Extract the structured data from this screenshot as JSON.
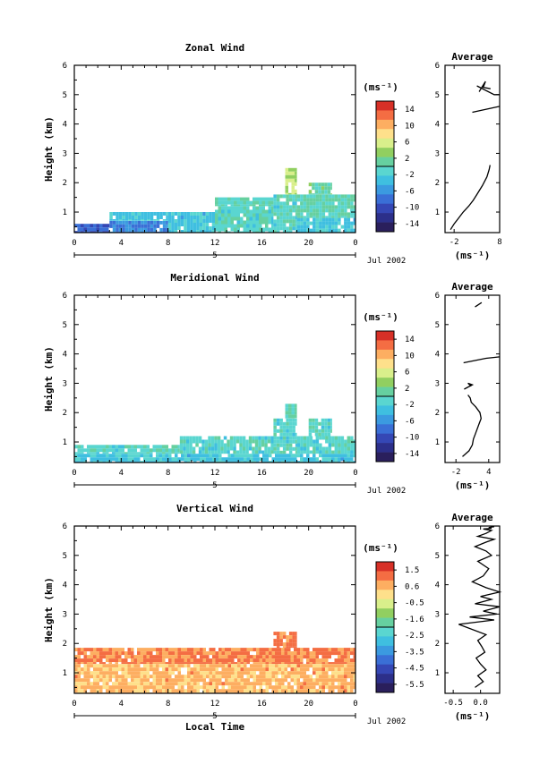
{
  "chart_data": [
    {
      "type": "heatmap",
      "title": "Zonal Wind",
      "ylabel": "Height (km)",
      "xlabel": "",
      "date_label": "Jul 2002",
      "day_label": "5",
      "x_ticks": [
        "0",
        "4",
        "8",
        "12",
        "16",
        "20",
        "0"
      ],
      "y_ticks": [
        "1",
        "2",
        "3",
        "4",
        "5",
        "6"
      ],
      "xlim": [
        0,
        24
      ],
      "ylim": [
        0.3,
        6
      ],
      "colorbar": {
        "unit": "(ms⁻¹)",
        "tick_labels": [
          "14",
          "10",
          "6",
          "2",
          "-2",
          "-6",
          "-10",
          "-14"
        ],
        "range": [
          -16,
          16
        ]
      },
      "field_summary": [
        {
          "t0": 0,
          "t1": 3,
          "z0": 0.3,
          "z1": 0.6,
          "value": -9
        },
        {
          "t0": 3,
          "t1": 8,
          "z0": 0.3,
          "z1": 0.7,
          "value": -7
        },
        {
          "t0": 3,
          "t1": 8,
          "z0": 0.7,
          "z1": 1.0,
          "value": -3
        },
        {
          "t0": 8,
          "t1": 12,
          "z0": 0.3,
          "z1": 1.0,
          "value": -3
        },
        {
          "t0": 12,
          "t1": 17,
          "z0": 0.3,
          "z1": 1.2,
          "value": -1
        },
        {
          "t0": 12,
          "t1": 17,
          "z0": 1.2,
          "z1": 1.5,
          "value": 0
        },
        {
          "t0": 17,
          "t1": 19,
          "z0": 0.3,
          "z1": 1.6,
          "value": -1
        },
        {
          "t0": 18,
          "t1": 19,
          "z0": 1.6,
          "z1": 2.5,
          "value": 4
        },
        {
          "t0": 19,
          "t1": 24,
          "z0": 0.3,
          "z1": 0.8,
          "value": -3
        },
        {
          "t0": 19,
          "t1": 24,
          "z0": 0.8,
          "z1": 1.6,
          "value": 0
        },
        {
          "t0": 20,
          "t1": 22,
          "z0": 1.6,
          "z1": 2.0,
          "value": 1
        }
      ],
      "profile": {
        "title": "Average",
        "xlabel": "(ms⁻¹)",
        "x_ticks": [
          "-2",
          "8"
        ],
        "xlim": [
          -4,
          8
        ],
        "segments": [
          {
            "x": [
              -2.8,
              -2.0,
              -1.0,
              0.0,
              1.2,
              2.2,
              3.0,
              4.2,
              5.2,
              5.7,
              5.9
            ],
            "z": [
              0.4,
              0.6,
              0.8,
              1.0,
              1.2,
              1.4,
              1.6,
              1.9,
              2.2,
              2.45,
              2.6
            ]
          },
          {
            "x": [
              2.0,
              8.0
            ],
            "z": [
              4.4,
              4.6
            ]
          },
          {
            "x": [
              3.0,
              6.8,
              8.0
            ],
            "z": [
              5.3,
              5.0,
              5.0
            ]
          },
          {
            "x": [
              3.5,
              4.9,
              4.4,
              6.0
            ],
            "z": [
              5.1,
              5.45,
              5.25,
              5.2
            ]
          }
        ]
      }
    },
    {
      "type": "heatmap",
      "title": "Meridional Wind",
      "ylabel": "Height (km)",
      "xlabel": "",
      "date_label": "Jul 2002",
      "day_label": "5",
      "x_ticks": [
        "0",
        "4",
        "8",
        "12",
        "16",
        "20",
        "0"
      ],
      "y_ticks": [
        "1",
        "2",
        "3",
        "4",
        "5",
        "6"
      ],
      "xlim": [
        0,
        24
      ],
      "ylim": [
        0.3,
        6
      ],
      "colorbar": {
        "unit": "(ms⁻¹)",
        "tick_labels": [
          "14",
          "10",
          "6",
          "2",
          "-2",
          "-6",
          "-10",
          "-14"
        ],
        "range": [
          -16,
          16
        ]
      },
      "field_summary": [
        {
          "t0": 0,
          "t1": 24,
          "z0": 0.3,
          "z1": 0.6,
          "value": -3
        },
        {
          "t0": 0,
          "t1": 9,
          "z0": 0.6,
          "z1": 0.9,
          "value": -1
        },
        {
          "t0": 9,
          "t1": 17,
          "z0": 0.6,
          "z1": 1.2,
          "value": -1
        },
        {
          "t0": 17,
          "t1": 19,
          "z0": 0.6,
          "z1": 1.8,
          "value": -1
        },
        {
          "t0": 18,
          "t1": 19,
          "z0": 1.8,
          "z1": 2.3,
          "value": 0
        },
        {
          "t0": 19,
          "t1": 24,
          "z0": 0.6,
          "z1": 1.2,
          "value": -1
        },
        {
          "t0": 20,
          "t1": 22,
          "z0": 1.2,
          "z1": 1.8,
          "value": -1
        }
      ],
      "profile": {
        "title": "Average",
        "xlabel": "(ms⁻¹)",
        "x_ticks": [
          "-2",
          "4"
        ],
        "xlim": [
          -4,
          6
        ],
        "segments": [
          {
            "x": [
              -0.8,
              0.4,
              1.0,
              1.2,
              1.6,
              2.2,
              2.6,
              2.4,
              1.6,
              0.8,
              0.6,
              0.2
            ],
            "z": [
              0.5,
              0.7,
              0.9,
              1.1,
              1.3,
              1.6,
              1.8,
              2.0,
              2.2,
              2.35,
              2.5,
              2.6
            ]
          },
          {
            "x": [
              -0.5,
              1.0,
              0.2,
              0.8
            ],
            "z": [
              2.8,
              2.95,
              3.0,
              2.9
            ]
          },
          {
            "x": [
              -0.6,
              3.5,
              6.0
            ],
            "z": [
              3.7,
              3.85,
              3.9
            ]
          },
          {
            "x": [
              1.5,
              2.7
            ],
            "z": [
              5.6,
              5.75
            ]
          }
        ]
      }
    },
    {
      "type": "heatmap",
      "title": "Vertical Wind",
      "ylabel": "Height (km)",
      "xlabel": "Local Time",
      "date_label": "Jul 2002",
      "day_label": "5",
      "x_ticks": [
        "0",
        "4",
        "8",
        "12",
        "16",
        "20",
        "0"
      ],
      "y_ticks": [
        "1",
        "2",
        "3",
        "4",
        "5",
        "6"
      ],
      "xlim": [
        0,
        24
      ],
      "ylim": [
        0.3,
        6
      ],
      "colorbar": {
        "unit": "(ms⁻¹)",
        "tick_labels": [
          "1.5",
          "0.6",
          "-0.5",
          "-1.6",
          "-2.5",
          "-3.5",
          "-4.5",
          "-5.5"
        ],
        "range": [
          -6,
          2
        ]
      },
      "field_summary": [
        {
          "t0": 0,
          "t1": 24,
          "z0": 0.3,
          "z1": 1.3,
          "value": 0.4
        },
        {
          "t0": 0,
          "t1": 24,
          "z0": 1.3,
          "z1": 1.85,
          "value": 0.9
        },
        {
          "t0": 17,
          "t1": 19,
          "z0": 1.85,
          "z1": 2.4,
          "value": 0.9
        }
      ],
      "profile": {
        "title": "Average",
        "xlabel": "(ms⁻¹)",
        "x_ticks": [
          "-0.5",
          "0.0"
        ],
        "xlim": [
          -0.65,
          0.35
        ],
        "segments": [
          {
            "x": [
              -0.1,
              0.05,
              -0.05,
              0.1,
              0.0,
              -0.08,
              0.08,
              0.02,
              -0.05,
              0.1,
              -0.4,
              0.25,
              -0.2,
              0.3,
              0.05,
              0.35,
              -0.1,
              0.2,
              0.0,
              0.35,
              0.1,
              -0.15,
              0.05,
              0.15,
              -0.05,
              0.2,
              0.1,
              -0.1,
              0.1,
              0.25,
              -0.05,
              0.1,
              0.2,
              0.05,
              0.2,
              0.15,
              0.25
            ],
            "z": [
              0.5,
              0.7,
              0.9,
              1.1,
              1.3,
              1.5,
              1.7,
              1.9,
              2.1,
              2.3,
              2.65,
              2.8,
              2.9,
              3.0,
              3.1,
              3.25,
              3.35,
              3.5,
              3.6,
              3.75,
              3.9,
              4.1,
              4.3,
              4.55,
              4.8,
              5.0,
              5.15,
              5.3,
              5.45,
              5.55,
              5.65,
              5.75,
              5.85,
              5.9,
              5.92,
              5.95,
              5.98
            ]
          }
        ]
      }
    }
  ]
}
